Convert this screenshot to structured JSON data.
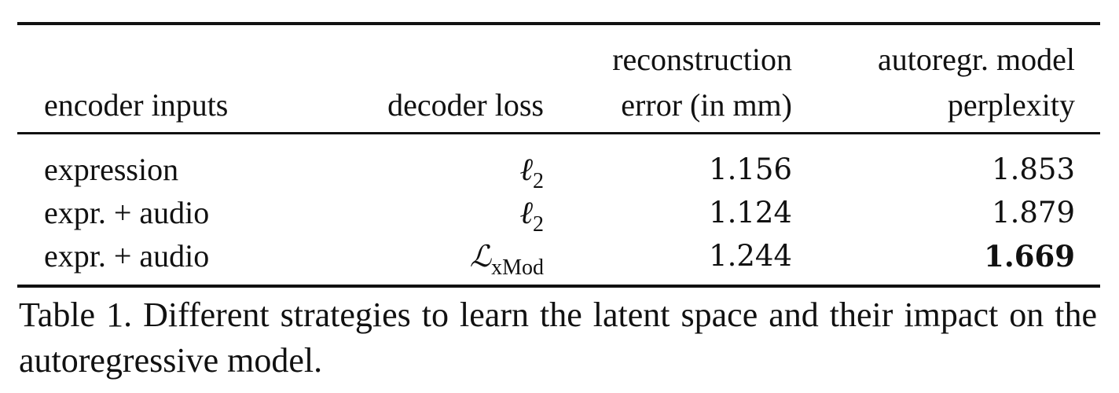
{
  "table": {
    "headers": {
      "encoder_inputs": "encoder inputs",
      "decoder_loss": "decoder loss",
      "recon_line1": "reconstruction",
      "recon_line2": "error (in mm)",
      "ppl_line1": "autoregr. model",
      "ppl_line2": "perplexity"
    },
    "rows": [
      {
        "encoder_inputs": "expression",
        "loss_symbol": "ℓ",
        "loss_sub": "2",
        "reconstruction_error": "1.156",
        "perplexity": "1.853"
      },
      {
        "encoder_inputs": "expr. + audio",
        "loss_symbol": "ℓ",
        "loss_sub": "2",
        "reconstruction_error": "1.124",
        "perplexity": "1.879"
      },
      {
        "encoder_inputs": "expr. + audio",
        "loss_symbol": "ℒ",
        "loss_sub": "xMod",
        "reconstruction_error": "1.244",
        "perplexity": "1.669"
      }
    ]
  },
  "caption": "Table 1. Different strategies to learn the latent space and their impact on the autoregressive model."
}
